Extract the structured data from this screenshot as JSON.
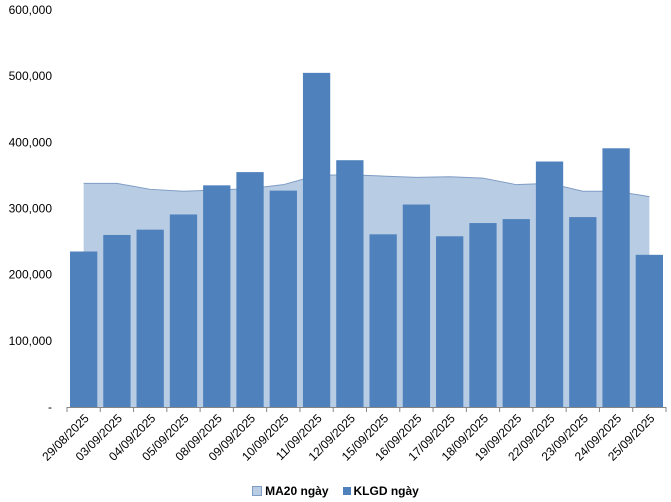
{
  "chart_data": {
    "type": "bar",
    "categories": [
      "29/08/2025",
      "03/09/2025",
      "04/09/2025",
      "05/09/2025",
      "08/09/2025",
      "09/09/2025",
      "10/09/2025",
      "11/09/2025",
      "12/09/2025",
      "15/09/2025",
      "16/09/2025",
      "17/09/2025",
      "18/09/2025",
      "19/09/2025",
      "22/09/2025",
      "23/09/2025",
      "24/09/2025",
      "25/09/2025"
    ],
    "series": [
      {
        "name": "MA20 ngày",
        "kind": "area",
        "color": "#b8cce4",
        "values": [
          338000,
          338000,
          329000,
          326000,
          328000,
          330000,
          336000,
          350000,
          351000,
          349000,
          347000,
          348000,
          346000,
          336000,
          338000,
          326000,
          326000,
          318000
        ]
      },
      {
        "name": "KLGD ngày",
        "kind": "bar",
        "color": "#4f81bd",
        "values": [
          235000,
          260000,
          268000,
          291000,
          335000,
          355000,
          327000,
          505000,
          373000,
          261000,
          306000,
          258000,
          278000,
          284000,
          371000,
          287000,
          391000,
          230000
        ]
      }
    ],
    "yticks": [
      "-",
      "100,000",
      "200,000",
      "300,000",
      "400,000",
      "500,000",
      "600,000"
    ],
    "ylim": [
      0,
      600000
    ],
    "grid": false,
    "legend_position": "bottom"
  }
}
